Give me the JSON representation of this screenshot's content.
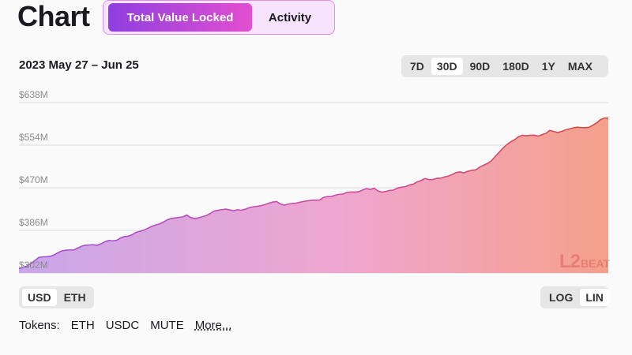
{
  "header": {
    "title": "Chart",
    "tabs": [
      {
        "label": "Total Value Locked",
        "active": true
      },
      {
        "label": "Activity",
        "active": false
      }
    ]
  },
  "date_range": "2023 May 27 – Jun 25",
  "range_buttons": [
    {
      "label": "7D",
      "selected": false
    },
    {
      "label": "30D",
      "selected": true
    },
    {
      "label": "90D",
      "selected": false
    },
    {
      "label": "180D",
      "selected": false
    },
    {
      "label": "1Y",
      "selected": false
    },
    {
      "label": "MAX",
      "selected": false
    }
  ],
  "unit_buttons": [
    {
      "label": "USD",
      "selected": true
    },
    {
      "label": "ETH",
      "selected": false
    }
  ],
  "scale_buttons": [
    {
      "label": "LOG",
      "selected": false
    },
    {
      "label": "LIN",
      "selected": true
    }
  ],
  "tokens": {
    "label": "Tokens:",
    "items": [
      "ETH",
      "USDC",
      "MUTE"
    ],
    "more": "More..."
  },
  "watermark": {
    "number": "L2",
    "word": "BEAT"
  },
  "colors": {
    "accent_start": "#8f3ee0",
    "accent_end": "#e34fd0",
    "line_start": "#a24fd8",
    "line_mid": "#d24aa6",
    "line_end": "#d84a3c",
    "fill_start": "#c9a6ea",
    "fill_mid": "#efa6cf",
    "fill_end": "#f5a08a"
  },
  "chart_data": {
    "type": "area",
    "title": "",
    "xlabel": "",
    "ylabel": "",
    "x_range": [
      "2023-05-27",
      "2023-06-25"
    ],
    "ylim": [
      302,
      638
    ],
    "yticks": [
      {
        "value": 638,
        "label": "$638M"
      },
      {
        "value": 554,
        "label": "$554M"
      },
      {
        "value": 470,
        "label": "$470M"
      },
      {
        "value": 386,
        "label": "$386M"
      },
      {
        "value": 302,
        "label": "$302M"
      }
    ],
    "grid": true,
    "values": [
      310.4,
      313.3,
      315.3,
      320.2,
      325.8,
      332.4,
      333.7,
      333.9,
      334.7,
      337.6,
      341.9,
      345.8,
      346.8,
      347.3,
      347.3,
      350.8,
      354.7,
      356.6,
      357.2,
      357.8,
      356.4,
      359.5,
      363.4,
      366.0,
      365.4,
      366.3,
      370.8,
      373.8,
      374.4,
      377.4,
      382.1,
      384.1,
      386.3,
      390.1,
      393.8,
      396.7,
      398.7,
      402.3,
      406.8,
      409.5,
      410.4,
      411.7,
      412.6,
      416.2,
      411.3,
      409.5,
      410.7,
      413.0,
      415.1,
      419.4,
      424.0,
      425.6,
      426.8,
      427.9,
      426.4,
      424.6,
      426.8,
      425.7,
      427.7,
      430.7,
      432.5,
      433.4,
      434.6,
      436.7,
      439.4,
      441.8,
      442.9,
      438.1,
      435.5,
      437.9,
      439.1,
      439.6,
      441.5,
      443.2,
      444.2,
      445.4,
      445.6,
      445.8,
      450.7,
      452.7,
      452.6,
      455.2,
      457.0,
      457.4,
      460.9,
      461.6,
      461.6,
      462.1,
      465.3,
      468.4,
      466.6,
      469.0,
      463.7,
      461.4,
      462.7,
      464.7,
      465.5,
      469.5,
      471.1,
      472.1,
      475.5,
      477.1,
      481.4,
      484.4,
      488.1,
      486.2,
      486.0,
      488.6,
      488.9,
      491.2,
      493.2,
      496.0,
      500.1,
      501.4,
      499.4,
      502.6,
      504.2,
      505.4,
      510.3,
      514.4,
      517.8,
      522.9,
      531.3,
      539.7,
      548.1,
      555.1,
      560.5,
      564.7,
      570.7,
      573.6,
      572.4,
      573.6,
      573.7,
      571.8,
      574.8,
      577.2,
      583.1,
      581.0,
      578.8,
      581.0,
      584.2,
      585.9,
      588.0,
      589.4,
      588.7,
      588.4,
      589.1,
      593.2,
      597.8,
      604.4,
      607.4,
      607.4
    ]
  }
}
